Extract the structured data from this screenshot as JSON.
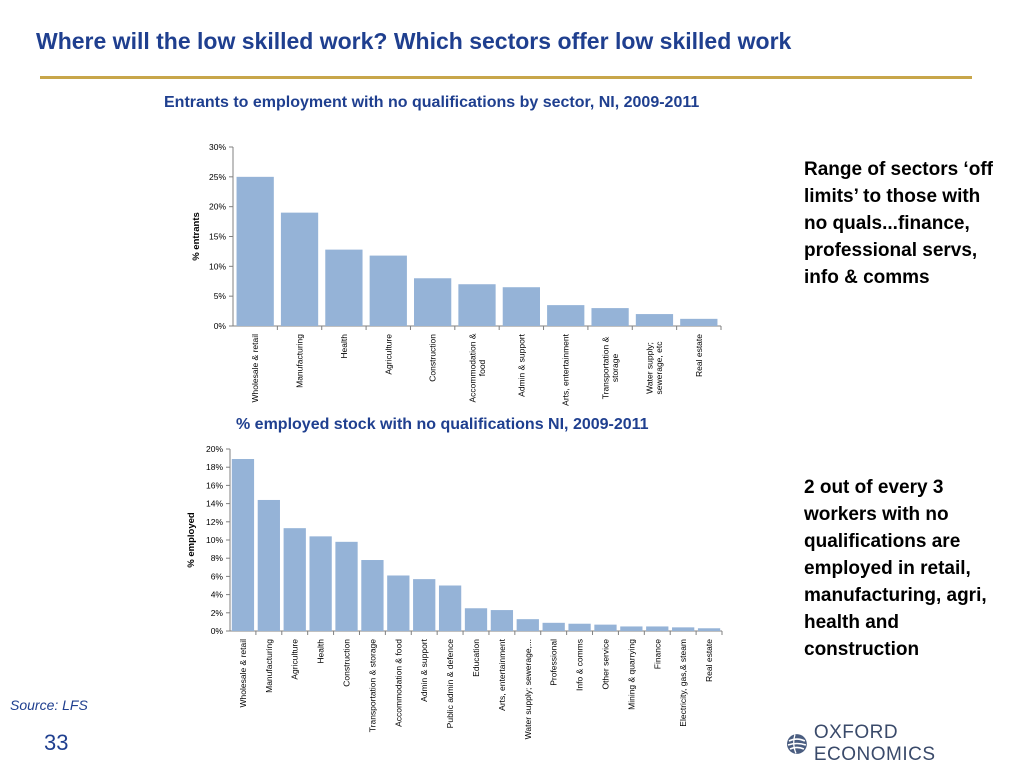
{
  "slide": {
    "title": "Where will the low skilled work? Which sectors offer low skilled work",
    "source": "Source: LFS",
    "page_number": "33",
    "logo_text": "OXFORD ECONOMICS",
    "note1": "Range of sectors ‘off limits’ to those with no quals...finance, professional servs, info & comms",
    "note2": "2 out of every 3 workers with no qualifications are employed in retail, manufacturing, agri, health and construction"
  },
  "colors": {
    "bar": "#95b3d7",
    "title": "#1f3f8f",
    "rule": "#c8a64a"
  },
  "chart_data": [
    {
      "type": "bar",
      "title": "Entrants to employment with no qualifications by sector, NI, 2009-2011",
      "ylabel": "% entrants",
      "ylim": [
        0,
        30
      ],
      "yticks": [
        0,
        5,
        10,
        15,
        20,
        25,
        30
      ],
      "ytick_labels": [
        "0%",
        "5%",
        "10%",
        "15%",
        "20%",
        "25%",
        "30%"
      ],
      "categories": [
        [
          "Wholesale & retail"
        ],
        [
          "Manufacturing"
        ],
        [
          "Health"
        ],
        [
          "Agriculture"
        ],
        [
          "Construction"
        ],
        [
          "Accommodation &",
          "food"
        ],
        [
          "Admin & support"
        ],
        [
          "Arts, entertainment"
        ],
        [
          "Transportation &",
          "storage"
        ],
        [
          "Water supply;",
          "sewerage, etc"
        ],
        [
          "Real estate"
        ]
      ],
      "values": [
        25.0,
        19.0,
        12.8,
        11.8,
        8.0,
        7.0,
        6.5,
        3.5,
        3.0,
        2.0,
        1.2
      ]
    },
    {
      "type": "bar",
      "title": "% employed stock with no qualifications NI, 2009-2011",
      "ylabel": "% employed",
      "ylim": [
        0,
        20
      ],
      "yticks": [
        0,
        2,
        4,
        6,
        8,
        10,
        12,
        14,
        16,
        18,
        20
      ],
      "ytick_labels": [
        "0%",
        "2%",
        "4%",
        "6%",
        "8%",
        "10%",
        "12%",
        "14%",
        "16%",
        "18%",
        "20%"
      ],
      "categories": [
        [
          "Wholesale & retail"
        ],
        [
          "Manufacturing"
        ],
        [
          "Agriculture"
        ],
        [
          "Health"
        ],
        [
          "Construction"
        ],
        [
          "Transportation & storage"
        ],
        [
          "Accommodation & food"
        ],
        [
          "Admin & support"
        ],
        [
          "Public admin & defence"
        ],
        [
          "Education"
        ],
        [
          "Arts, entertainment"
        ],
        [
          "Water supply; sewerage,..."
        ],
        [
          "Professional"
        ],
        [
          "Info & comms"
        ],
        [
          "Other service"
        ],
        [
          "Mining & quarrying"
        ],
        [
          "Finance"
        ],
        [
          "Electricity, gas,& steam"
        ],
        [
          "Real estate"
        ]
      ],
      "values": [
        18.9,
        14.4,
        11.3,
        10.4,
        9.8,
        7.8,
        6.1,
        5.7,
        5.0,
        2.5,
        2.3,
        1.3,
        0.9,
        0.8,
        0.7,
        0.5,
        0.5,
        0.4,
        0.3
      ]
    }
  ]
}
